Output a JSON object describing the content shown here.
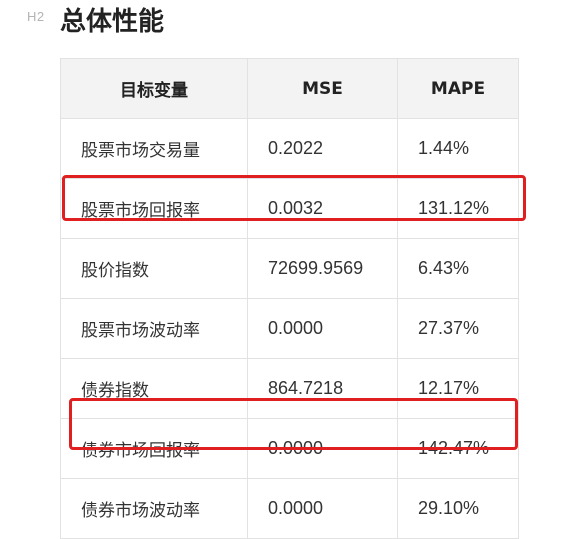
{
  "heading": {
    "level_marker": "H2",
    "title": "总体性能"
  },
  "table": {
    "headers": [
      "目标变量",
      "MSE",
      "MAPE"
    ],
    "rows": [
      {
        "variable": "股票市场交易量",
        "mse": "0.2022",
        "mape": "1.44%"
      },
      {
        "variable": "股票市场回报率",
        "mse": "0.0032",
        "mape": "131.12%"
      },
      {
        "variable": "股价指数",
        "mse": "72699.9569",
        "mape": "6.43%"
      },
      {
        "variable": "股票市场波动率",
        "mse": "0.0000",
        "mape": "27.37%"
      },
      {
        "variable": "债券指数",
        "mse": "864.7218",
        "mape": "12.17%"
      },
      {
        "variable": "债券市场回报率",
        "mse": "0.0000",
        "mape": "142.47%"
      },
      {
        "variable": "债券市场波动率",
        "mse": "0.0000",
        "mape": "29.10%"
      }
    ]
  },
  "highlight_color": "#e02020"
}
